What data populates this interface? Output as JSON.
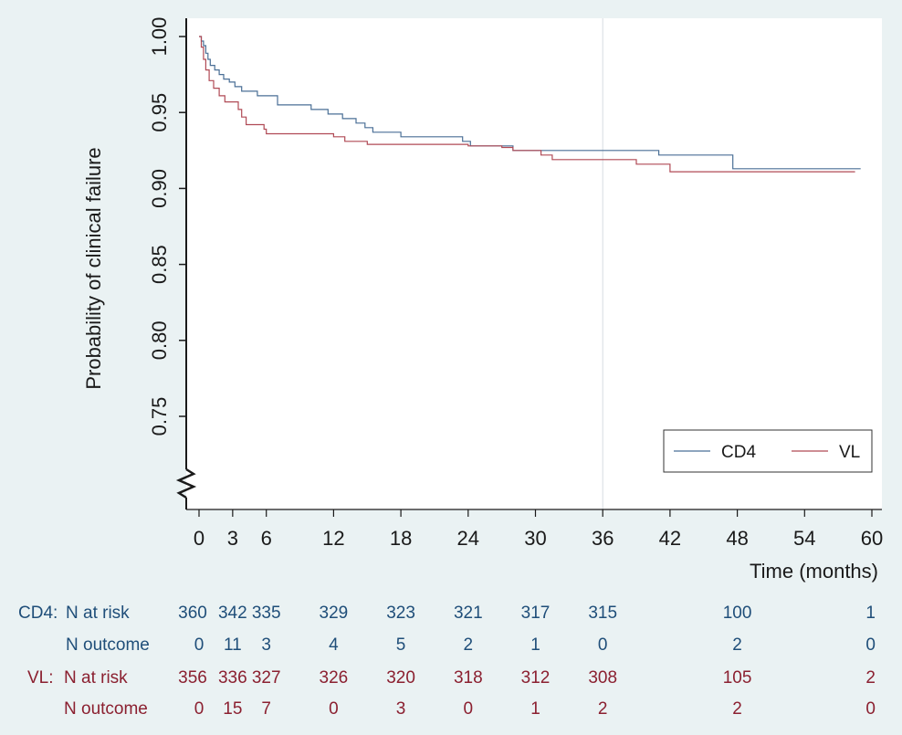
{
  "chart_data": {
    "type": "line",
    "xlabel": "Time (months)",
    "ylabel": "Probability of clinical failure",
    "xlim": [
      0,
      60
    ],
    "ylim": [
      0.7,
      1.0
    ],
    "x_ticks": [
      0,
      3,
      6,
      12,
      18,
      24,
      30,
      36,
      42,
      48,
      54,
      60
    ],
    "y_ticks": [
      0.75,
      0.8,
      0.85,
      0.9,
      0.95,
      1.0
    ],
    "y_tick_labels": [
      "0.75",
      "0.80",
      "0.85",
      "0.90",
      "0.95",
      "1.00"
    ],
    "reference_line_x": 36,
    "grid": false,
    "axis_break": true,
    "legend": {
      "placement": "bottom-right",
      "entries": [
        "CD4",
        "VL"
      ]
    },
    "colors": {
      "background": "#eaf2f3",
      "plot_bg": "#ffffff",
      "CD4": "#4a6f96",
      "VL": "#b04a55"
    },
    "series": [
      {
        "name": "CD4",
        "color": "#4a6f96",
        "steps": [
          [
            0,
            1.0
          ],
          [
            0.2,
            0.997
          ],
          [
            0.4,
            0.994
          ],
          [
            0.6,
            0.989
          ],
          [
            0.8,
            0.985
          ],
          [
            1.0,
            0.981
          ],
          [
            1.4,
            0.978
          ],
          [
            1.8,
            0.975
          ],
          [
            2.2,
            0.972
          ],
          [
            2.7,
            0.97
          ],
          [
            3.2,
            0.967
          ],
          [
            3.8,
            0.964
          ],
          [
            5.2,
            0.961
          ],
          [
            7.0,
            0.955
          ],
          [
            10.0,
            0.952
          ],
          [
            11.5,
            0.949
          ],
          [
            12.8,
            0.946
          ],
          [
            14.0,
            0.943
          ],
          [
            14.8,
            0.94
          ],
          [
            15.5,
            0.937
          ],
          [
            18.0,
            0.934
          ],
          [
            23.5,
            0.931
          ],
          [
            24.2,
            0.928
          ],
          [
            27.5,
            0.928
          ],
          [
            28.0,
            0.925
          ],
          [
            30.0,
            0.925
          ],
          [
            41.0,
            0.922
          ],
          [
            47.6,
            0.913
          ],
          [
            59.0,
            0.913
          ]
        ]
      },
      {
        "name": "VL",
        "color": "#b04a55",
        "steps": [
          [
            0,
            1.0
          ],
          [
            0.2,
            0.993
          ],
          [
            0.4,
            0.985
          ],
          [
            0.6,
            0.978
          ],
          [
            0.9,
            0.971
          ],
          [
            1.3,
            0.966
          ],
          [
            1.8,
            0.961
          ],
          [
            2.3,
            0.957
          ],
          [
            3.5,
            0.952
          ],
          [
            3.8,
            0.947
          ],
          [
            4.2,
            0.942
          ],
          [
            5.8,
            0.939
          ],
          [
            6.0,
            0.936
          ],
          [
            11.0,
            0.936
          ],
          [
            12.0,
            0.934
          ],
          [
            13.0,
            0.931
          ],
          [
            14.0,
            0.931
          ],
          [
            15.0,
            0.929
          ],
          [
            24.0,
            0.928
          ],
          [
            27.0,
            0.927
          ],
          [
            28.0,
            0.925
          ],
          [
            30.5,
            0.922
          ],
          [
            31.5,
            0.919
          ],
          [
            38.0,
            0.919
          ],
          [
            39.0,
            0.916
          ],
          [
            42.0,
            0.911
          ],
          [
            58.5,
            0.911
          ]
        ]
      }
    ],
    "risk_table": {
      "time_points": [
        0,
        3,
        6,
        12,
        18,
        24,
        30,
        36,
        48,
        60
      ],
      "groups": [
        {
          "label": "CD4:",
          "rows": [
            {
              "label": "N at risk",
              "values": [
                "360",
                "342",
                "335",
                "329",
                "323",
                "321",
                "317",
                "315",
                "100",
                "1"
              ]
            },
            {
              "label": "N outcome",
              "values": [
                "0",
                "11",
                "3",
                "4",
                "5",
                "2",
                "1",
                "0",
                "2",
                "0"
              ]
            }
          ]
        },
        {
          "label": "VL:",
          "rows": [
            {
              "label": "N at risk",
              "values": [
                "356",
                "336",
                "327",
                "326",
                "320",
                "318",
                "312",
                "308",
                "105",
                "2"
              ]
            },
            {
              "label": "N outcome",
              "values": [
                "0",
                "15",
                "7",
                "0",
                "3",
                "0",
                "1",
                "2",
                "2",
                "0"
              ]
            }
          ]
        }
      ]
    }
  }
}
